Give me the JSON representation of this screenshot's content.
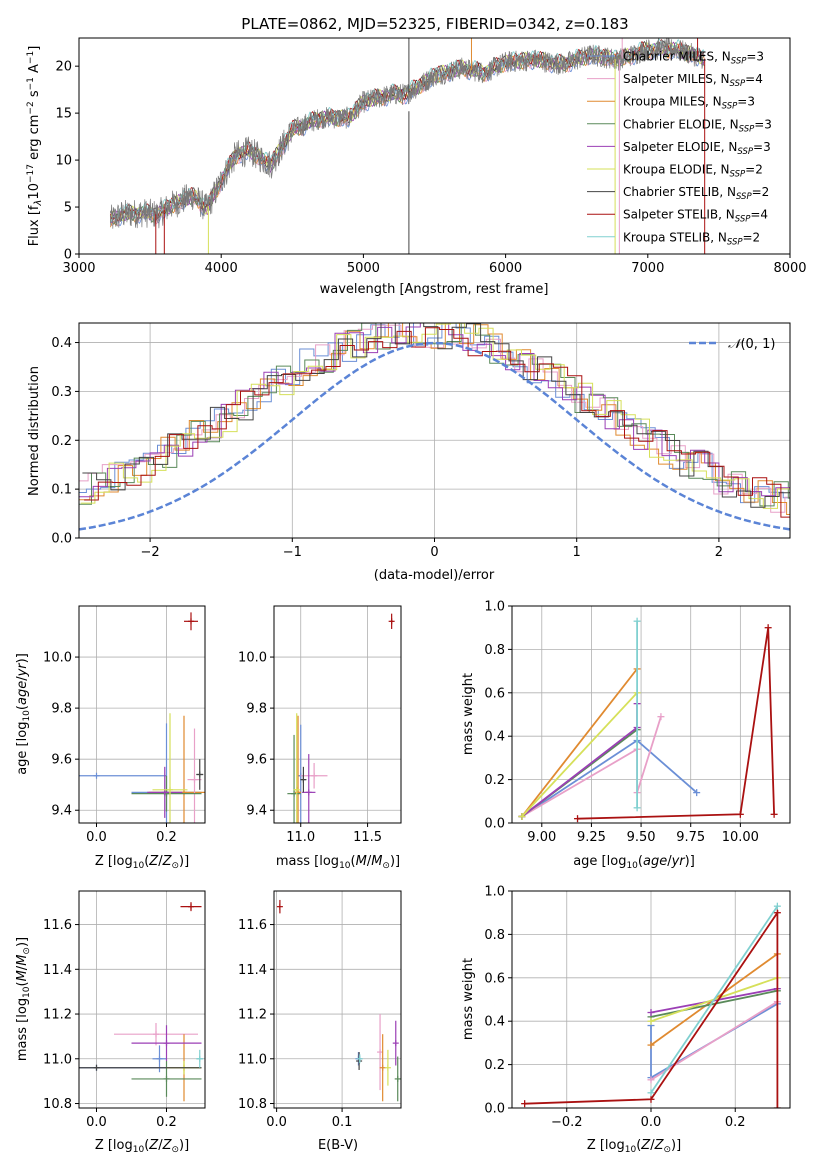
{
  "figure_title": "PLATE=0862, MJD=52325, FIBERID=0342, z=0.183",
  "model_colors": [
    "#6b8fd6",
    "#e8a0c8",
    "#e08a30",
    "#5a8a5a",
    "#9b3fb5",
    "#d6e05a",
    "#444444",
    "#aa1111",
    "#80d0d0"
  ],
  "chart_data": [
    {
      "id": "spectrum",
      "type": "line",
      "title": "PLATE=0862, MJD=52325, FIBERID=0342, z=0.183",
      "xlabel": "wavelength [Angstrom, rest frame]",
      "ylabel": "Flux [f_λ 10^-17 erg cm^-2 s^-1 A^-1]",
      "xlim": [
        3000,
        8000
      ],
      "ylim": [
        0,
        23
      ],
      "xticks": [
        "3000",
        "4000",
        "5000",
        "6000",
        "7000",
        "8000"
      ],
      "yticks": [
        "0",
        "5",
        "10",
        "15",
        "20"
      ],
      "grid": false,
      "legend_position": "upper-right",
      "legend": [
        {
          "label": "Chabrier MILES, N_SSP=3",
          "color": "#6b8fd6"
        },
        {
          "label": "Salpeter MILES, N_SSP=4",
          "color": "#e8a0c8"
        },
        {
          "label": "Kroupa MILES, N_SSP=3",
          "color": "#e08a30"
        },
        {
          "label": "Chabrier ELODIE, N_SSP=3",
          "color": "#5a8a5a"
        },
        {
          "label": "Salpeter ELODIE, N_SSP=3",
          "color": "#9b3fb5"
        },
        {
          "label": "Kroupa ELODIE, N_SSP=2",
          "color": "#d6e05a"
        },
        {
          "label": "Chabrier STELIB, N_SSP=2",
          "color": "#444444"
        },
        {
          "label": "Salpeter STELIB, N_SSP=4",
          "color": "#aa1111"
        },
        {
          "label": "Kroupa STELIB, N_SSP=2",
          "color": "#80d0d0"
        }
      ],
      "continuum": [
        [
          3220,
          3.6
        ],
        [
          3300,
          4.2
        ],
        [
          3450,
          4.4
        ],
        [
          3550,
          4.2
        ],
        [
          3650,
          5.2
        ],
        [
          3800,
          6.2
        ],
        [
          3900,
          4.8
        ],
        [
          4000,
          7.8
        ],
        [
          4100,
          10.5
        ],
        [
          4200,
          11.0
        ],
        [
          4350,
          9.5
        ],
        [
          4500,
          13.2
        ],
        [
          4700,
          14.5
        ],
        [
          4900,
          14.5
        ],
        [
          5000,
          16.2
        ],
        [
          5200,
          17.0
        ],
        [
          5300,
          17.0
        ],
        [
          5500,
          19.0
        ],
        [
          5700,
          19.8
        ],
        [
          5850,
          19.3
        ],
        [
          6000,
          20.4
        ],
        [
          6200,
          20.7
        ],
        [
          6400,
          20.2
        ],
        [
          6600,
          21.2
        ],
        [
          6800,
          20.7
        ],
        [
          7000,
          21.8
        ],
        [
          7200,
          21.8
        ],
        [
          7400,
          20.8
        ]
      ],
      "drops": [
        {
          "x": 3540,
          "color": "#aa1111"
        },
        {
          "x": 3600,
          "color": "#aa1111"
        },
        {
          "x": 3910,
          "color": "#d6e05a"
        },
        {
          "x": 6770,
          "color": "#d6e05a"
        },
        {
          "x": 6800,
          "color": "#e8a0c8"
        },
        {
          "x": 7400,
          "color": "#aa1111"
        }
      ],
      "spikes": [
        {
          "x": 5320,
          "y": 23,
          "color": "#444444"
        },
        {
          "x": 5760,
          "y": 23,
          "color": "#e08a30"
        },
        {
          "x": 6820,
          "y": 23,
          "color": "#e8a0c8"
        },
        {
          "x": 7350,
          "y": 23,
          "color": "#aa1111"
        }
      ]
    },
    {
      "id": "residual-histogram",
      "type": "line",
      "xlabel": "(data-model)/error",
      "ylabel": "Normed distribution",
      "xlim": [
        -2.5,
        2.5
      ],
      "ylim": [
        0,
        0.44
      ],
      "xticks": [
        "−2",
        "−1",
        "0",
        "1",
        "2"
      ],
      "yticks": [
        "0.0",
        "0.1",
        "0.2",
        "0.3",
        "0.4"
      ],
      "grid": true,
      "legend": [
        {
          "label": "N(0,1)",
          "color": "#5b84d6",
          "style": "dashed"
        }
      ],
      "gaussian": {
        "mean": 0,
        "sigma": 1
      },
      "bin_width": 0.1
    },
    {
      "id": "age-vs-Z",
      "type": "scatter",
      "xlabel": "Z [log10(Z/Z_sun)]",
      "ylabel": "age [log10(age/yr)]",
      "xlim": [
        -0.05,
        0.31
      ],
      "ylim": [
        9.35,
        10.2
      ],
      "xticks": [
        "0.0",
        "0.2"
      ],
      "yticks": [
        "9.4",
        "9.6",
        "9.8",
        "10.0"
      ],
      "grid": true,
      "points": [
        {
          "x": 0.0,
          "y": 9.535,
          "xerr": 0.2,
          "yerr": 0,
          "color": "#6b8fd6"
        },
        {
          "x": 0.2,
          "y": 9.47,
          "xerr": 0.1,
          "yerr": 0.27,
          "color": "#6b8fd6"
        },
        {
          "x": 0.25,
          "y": 9.47,
          "xerr": 0.1,
          "yerr": 0.3,
          "color": "#e08a30"
        },
        {
          "x": 0.28,
          "y": 9.52,
          "xerr": 0.02,
          "yerr": 0.2,
          "color": "#e8a0c8"
        },
        {
          "x": 0.2,
          "y": 9.465,
          "xerr": 0.1,
          "yerr": 0.07,
          "color": "#5a8a5a"
        },
        {
          "x": 0.195,
          "y": 9.47,
          "xerr": 0.05,
          "yerr": 0.1,
          "color": "#9b3fb5"
        },
        {
          "x": 0.21,
          "y": 9.48,
          "xerr": 0.05,
          "yerr": 0.3,
          "color": "#d6e05a"
        },
        {
          "x": 0.295,
          "y": 9.54,
          "xerr": 0.01,
          "yerr": 0.06,
          "color": "#444444"
        },
        {
          "x": 0.27,
          "y": 10.14,
          "xerr": 0.02,
          "yerr": 0.035,
          "color": "#aa1111"
        }
      ]
    },
    {
      "id": "age-vs-mass",
      "type": "scatter",
      "xlabel": "mass [log10(M/M_sun)]",
      "ylabel": "",
      "xlim": [
        10.8,
        11.75
      ],
      "ylim": [
        9.35,
        10.2
      ],
      "xticks": [
        "11.0",
        "11.5"
      ],
      "yticks": [
        "9.4",
        "9.6",
        "9.8",
        "10.0"
      ],
      "grid": true,
      "points": [
        {
          "x": 11.0,
          "y": 9.535,
          "xerr": 0.02,
          "yerr": 0.2,
          "color": "#6b8fd6"
        },
        {
          "x": 11.1,
          "y": 9.535,
          "xerr": 0.1,
          "yerr": 0.05,
          "color": "#e8a0c8"
        },
        {
          "x": 10.98,
          "y": 9.47,
          "xerr": 0.02,
          "yerr": 0.3,
          "color": "#e08a30"
        },
        {
          "x": 10.95,
          "y": 9.465,
          "xerr": 0.05,
          "yerr": 0.23,
          "color": "#5a8a5a"
        },
        {
          "x": 11.06,
          "y": 9.47,
          "xerr": 0.05,
          "yerr": 0.15,
          "color": "#9b3fb5"
        },
        {
          "x": 10.97,
          "y": 9.48,
          "xerr": 0.02,
          "yerr": 0.3,
          "color": "#d6e05a"
        },
        {
          "x": 11.02,
          "y": 9.52,
          "xerr": 0.02,
          "yerr": 0.05,
          "color": "#444444"
        },
        {
          "x": 11.68,
          "y": 10.14,
          "xerr": 0.01,
          "yerr": 0.03,
          "color": "#aa1111"
        }
      ]
    },
    {
      "id": "massweight-vs-age",
      "type": "line",
      "xlabel": "age [log10(age/yr)]",
      "ylabel": "mass weight",
      "xlim": [
        8.85,
        10.25
      ],
      "ylim": [
        0,
        1
      ],
      "xticks": [
        "9.00",
        "9.25",
        "9.50",
        "9.75",
        "10.00"
      ],
      "yticks": [
        "0.0",
        "0.2",
        "0.4",
        "0.6",
        "0.8",
        "1.0"
      ],
      "grid": true,
      "series": [
        {
          "color": "#6b8fd6",
          "points": [
            [
              8.9,
              0.03
            ],
            [
              9.48,
              0.38
            ],
            [
              9.78,
              0.14
            ]
          ]
        },
        {
          "color": "#e8a0c8",
          "points": [
            [
              8.9,
              0.03
            ],
            [
              9.48,
              0.34
            ],
            [
              9.48,
              0.14
            ],
            [
              9.6,
              0.49
            ]
          ]
        },
        {
          "color": "#e08a30",
          "points": [
            [
              8.9,
              0.03
            ],
            [
              9.48,
              0.71
            ]
          ]
        },
        {
          "color": "#5a8a5a",
          "points": [
            [
              8.9,
              0.03
            ],
            [
              9.48,
              0.43
            ]
          ]
        },
        {
          "color": "#9b3fb5",
          "points": [
            [
              8.9,
              0.03
            ],
            [
              9.48,
              0.44
            ],
            [
              9.48,
              0.55
            ]
          ]
        },
        {
          "color": "#d6e05a",
          "points": [
            [
              8.9,
              0.03
            ],
            [
              9.48,
              0.6
            ]
          ]
        },
        {
          "color": "#aa1111",
          "points": [
            [
              9.18,
              0.02
            ],
            [
              10.0,
              0.04
            ],
            [
              10.14,
              0.9
            ],
            [
              10.17,
              0.04
            ]
          ]
        },
        {
          "color": "#80d0d0",
          "points": [
            [
              9.48,
              0.07
            ],
            [
              9.48,
              0.93
            ]
          ]
        }
      ]
    },
    {
      "id": "mass-vs-Z",
      "type": "scatter",
      "xlabel": "Z [log10(Z/Z_sun)]",
      "ylabel": "mass [log10(M/M_sun)]",
      "xlim": [
        -0.05,
        0.31
      ],
      "ylim": [
        10.78,
        11.75
      ],
      "xticks": [
        "0.0",
        "0.2"
      ],
      "yticks": [
        "10.8",
        "11.0",
        "11.2",
        "11.4",
        "11.6"
      ],
      "grid": true,
      "points": [
        {
          "x": 0.0,
          "y": 10.96,
          "xerr": 0.2,
          "yerr": 0,
          "color": "#6b8fd6"
        },
        {
          "x": 0.18,
          "y": 11.0,
          "xerr": 0.02,
          "yerr": 0.06,
          "color": "#6b8fd6"
        },
        {
          "x": 0.17,
          "y": 11.11,
          "xerr": 0.12,
          "yerr": 0.05,
          "color": "#e8a0c8"
        },
        {
          "x": 0.25,
          "y": 10.96,
          "xerr": 0.05,
          "yerr": 0.15,
          "color": "#e08a30"
        },
        {
          "x": 0.2,
          "y": 10.91,
          "xerr": 0.1,
          "yerr": 0.08,
          "color": "#5a8a5a"
        },
        {
          "x": 0.2,
          "y": 11.07,
          "xerr": 0.1,
          "yerr": 0.08,
          "color": "#9b3fb5"
        },
        {
          "x": 0.25,
          "y": 10.96,
          "xerr": 0.05,
          "yerr": 0.03,
          "color": "#d6e05a"
        },
        {
          "x": 0.0,
          "y": 10.96,
          "xerr": 0.3,
          "yerr": 0.0,
          "color": "#444444"
        },
        {
          "x": 0.295,
          "y": 11.0,
          "xerr": 0.01,
          "yerr": 0.04,
          "color": "#80d0d0"
        },
        {
          "x": 0.27,
          "y": 11.68,
          "xerr": 0.03,
          "yerr": 0.02,
          "color": "#aa1111"
        }
      ]
    },
    {
      "id": "mass-vs-ebv",
      "type": "scatter",
      "xlabel": "E(B-V)",
      "ylabel": "",
      "xlim": [
        -0.004,
        0.19
      ],
      "ylim": [
        10.78,
        11.75
      ],
      "xticks": [
        "0.0",
        "0.1"
      ],
      "yticks": [
        "10.8",
        "11.0",
        "11.2",
        "11.4",
        "11.6"
      ],
      "grid": true,
      "points": [
        {
          "x": 0.125,
          "y": 11.0,
          "xerr": 0,
          "yerr": 0.03,
          "color": "#6b8fd6"
        },
        {
          "x": 0.158,
          "y": 11.03,
          "xerr": 0,
          "yerr": 0.17,
          "color": "#e8a0c8"
        },
        {
          "x": 0.162,
          "y": 10.96,
          "xerr": 0,
          "yerr": 0.15,
          "color": "#e08a30"
        },
        {
          "x": 0.185,
          "y": 10.91,
          "xerr": 0,
          "yerr": 0.1,
          "color": "#5a8a5a"
        },
        {
          "x": 0.182,
          "y": 11.07,
          "xerr": 0,
          "yerr": 0.1,
          "color": "#9b3fb5"
        },
        {
          "x": 0.17,
          "y": 10.96,
          "xerr": 0,
          "yerr": 0.08,
          "color": "#d6e05a"
        },
        {
          "x": 0.126,
          "y": 10.99,
          "xerr": 0,
          "yerr": 0.04,
          "color": "#444444"
        },
        {
          "x": 0.005,
          "y": 11.68,
          "xerr": 0,
          "yerr": 0.03,
          "color": "#aa1111"
        },
        {
          "x": 0.127,
          "y": 11.0,
          "xerr": 0,
          "yerr": 0.02,
          "color": "#80d0d0"
        }
      ]
    },
    {
      "id": "massweight-vs-Z",
      "type": "line",
      "xlabel": "Z [log10(Z/Z_sun)]",
      "ylabel": "mass weight",
      "xlim": [
        -0.33,
        0.33
      ],
      "ylim": [
        0,
        1
      ],
      "xticks": [
        "−0.2",
        "0.0",
        "0.2"
      ],
      "yticks": [
        "0.0",
        "0.2",
        "0.4",
        "0.6",
        "0.8",
        "1.0"
      ],
      "grid": true,
      "series": [
        {
          "color": "#6b8fd6",
          "points": [
            [
              0.0,
              0.38
            ],
            [
              0.0,
              0.14
            ],
            [
              0.3,
              0.48
            ]
          ]
        },
        {
          "color": "#e8a0c8",
          "points": [
            [
              0.0,
              0.13
            ],
            [
              0.3,
              0.49
            ]
          ]
        },
        {
          "color": "#e08a30",
          "points": [
            [
              0.0,
              0.29
            ],
            [
              0.3,
              0.71
            ]
          ]
        },
        {
          "color": "#5a8a5a",
          "points": [
            [
              0.0,
              0.42
            ],
            [
              0.3,
              0.54
            ]
          ]
        },
        {
          "color": "#9b3fb5",
          "points": [
            [
              0.0,
              0.44
            ],
            [
              0.3,
              0.55
            ]
          ]
        },
        {
          "color": "#d6e05a",
          "points": [
            [
              0.0,
              0.4
            ],
            [
              0.3,
              0.6
            ]
          ]
        },
        {
          "color": "#aa1111",
          "points": [
            [
              -0.3,
              0.02
            ],
            [
              0.0,
              0.04
            ],
            [
              0.3,
              0.9
            ],
            [
              0.3,
              0.0
            ]
          ]
        },
        {
          "color": "#80d0d0",
          "points": [
            [
              0.0,
              0.07
            ],
            [
              0.3,
              0.93
            ]
          ]
        }
      ]
    }
  ]
}
